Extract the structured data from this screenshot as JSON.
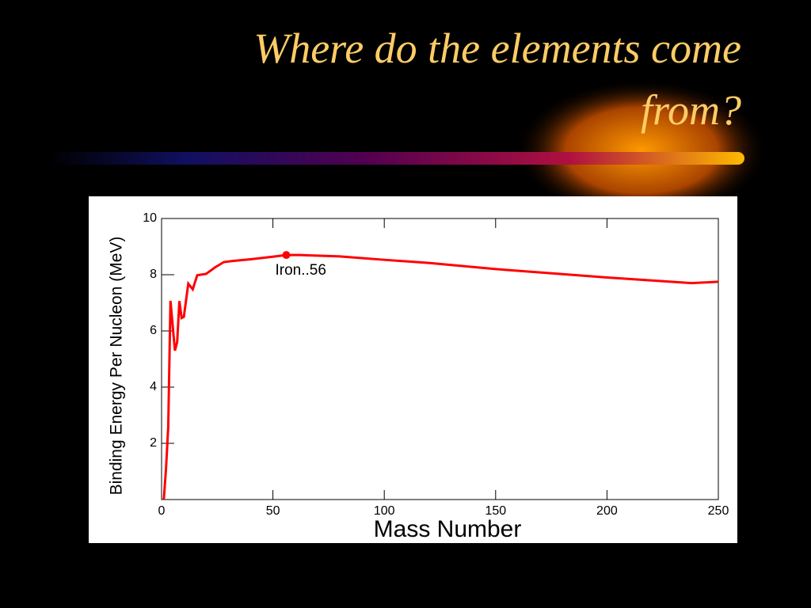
{
  "chart_data": {
    "type": "line",
    "title": "Where do the elements come from?",
    "xlabel": "Mass Number",
    "ylabel": "Binding Energy Per Nucleon (MeV)",
    "x": [
      1,
      2,
      3,
      4,
      6,
      7,
      8,
      9,
      10,
      12,
      14,
      16,
      20,
      24,
      28,
      32,
      40,
      50,
      56,
      62,
      80,
      100,
      120,
      150,
      180,
      200,
      238,
      250
    ],
    "series": [
      {
        "name": "Binding energy",
        "color": "#ff0000",
        "values": [
          0,
          1.1,
          2.6,
          7.07,
          5.3,
          5.6,
          7.06,
          6.46,
          6.5,
          7.68,
          7.48,
          7.98,
          8.03,
          8.26,
          8.45,
          8.49,
          8.55,
          8.64,
          8.7,
          8.7,
          8.65,
          8.53,
          8.42,
          8.2,
          8.02,
          7.9,
          7.7,
          7.75
        ]
      }
    ],
    "highlight": {
      "label": "Iron..56",
      "x": 56,
      "y": 8.7
    },
    "xlim": [
      0,
      250
    ],
    "ylim": [
      0,
      10
    ],
    "xticks": [
      0,
      50,
      100,
      150,
      200,
      250
    ],
    "yticks": [
      2,
      4,
      6,
      8,
      10
    ]
  }
}
